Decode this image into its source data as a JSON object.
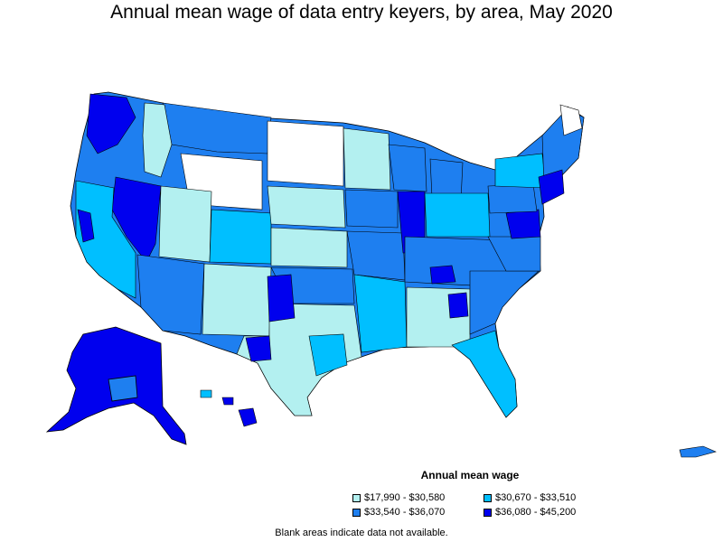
{
  "title": "Annual mean wage of data entry keyers, by area, May 2020",
  "legend": {
    "title": "Annual mean wage",
    "items": [
      {
        "label": "$17,990 - $30,580",
        "color": "#b3f0f0"
      },
      {
        "label": "$30,670 - $33,510",
        "color": "#00bfff"
      },
      {
        "label": "$33,540 - $36,070",
        "color": "#1e7ff0"
      },
      {
        "label": "$36,080 - $45,200",
        "color": "#0000ee"
      }
    ]
  },
  "note": "Blank areas indicate data not available.",
  "colors": {
    "no_data": "#ffffff",
    "border": "#000000"
  }
}
